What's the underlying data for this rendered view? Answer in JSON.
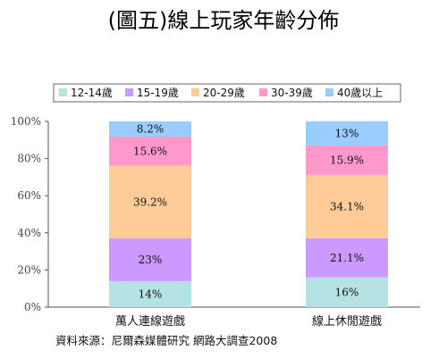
{
  "chart_data": {
    "type": "bar",
    "stacked": true,
    "title": "(圖五)線上玩家年齡分佈",
    "categories": [
      "萬人連線遊戲",
      "線上休閒遊戲"
    ],
    "series": [
      {
        "name": "12-14歲",
        "color": "#b5e3e3",
        "values": [
          14,
          16
        ],
        "labels": [
          "14%",
          "16%"
        ]
      },
      {
        "name": "15-19歲",
        "color": "#cc99ff",
        "values": [
          23,
          21.1
        ],
        "labels": [
          "23%",
          "21.1%"
        ]
      },
      {
        "name": "20-29歲",
        "color": "#ffcc99",
        "values": [
          39.2,
          34.1
        ],
        "labels": [
          "39.2%",
          "34.1%"
        ]
      },
      {
        "name": "30-39歲",
        "color": "#ff99cc",
        "values": [
          15.6,
          15.9
        ],
        "labels": [
          "15.6%",
          "15.9%"
        ]
      },
      {
        "name": "40歲以上",
        "color": "#99ccff",
        "values": [
          8.2,
          13
        ],
        "labels": [
          "8.2%",
          "13%"
        ]
      }
    ],
    "yticks": [
      "0%",
      "20%",
      "40%",
      "60%",
      "80%",
      "100%"
    ],
    "ylim": [
      0,
      100
    ],
    "legend_position": "top",
    "grid": false,
    "source": "資料來源：尼爾森媒體研究  網路大調查2008"
  }
}
